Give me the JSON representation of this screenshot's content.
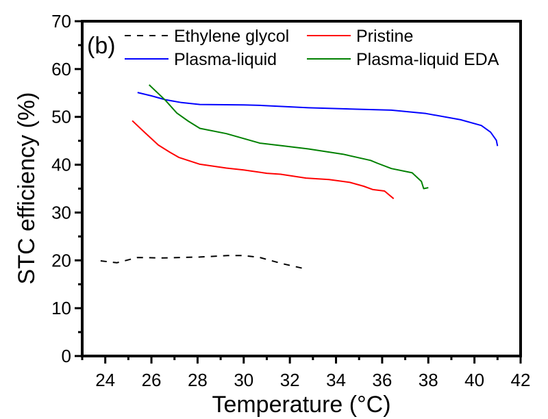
{
  "chart_data": {
    "type": "line",
    "title": "",
    "panel_label": "(b)",
    "xlabel": "Temperature (°C)",
    "ylabel": "STC efficiency (%)",
    "xlim": [
      23,
      42
    ],
    "ylim": [
      0,
      70
    ],
    "x_ticks": [
      24,
      26,
      28,
      30,
      32,
      34,
      36,
      38,
      40,
      42
    ],
    "x_minor_ticks": [
      23,
      25,
      27,
      29,
      31,
      33,
      35,
      37,
      39,
      41
    ],
    "y_ticks": [
      0,
      10,
      20,
      30,
      40,
      50,
      60,
      70
    ],
    "y_minor_ticks": [
      5,
      15,
      25,
      35,
      45,
      55,
      65
    ],
    "grid": false,
    "legend_position": "top",
    "series": [
      {
        "name": "Ethylene glycol",
        "color": "#000000",
        "style": "dashed",
        "x": [
          23.8,
          24.5,
          25.4,
          26.5,
          28.1,
          29.3,
          30.0,
          30.7,
          31.6,
          32.6
        ],
        "y": [
          19.9,
          19.5,
          20.6,
          20.5,
          20.7,
          21.0,
          21.0,
          20.6,
          19.4,
          18.3
        ]
      },
      {
        "name": "Pristine",
        "color": "#ff0000",
        "style": "solid",
        "x": [
          25.17,
          25.7,
          26.3,
          26.8,
          27.2,
          28.1,
          29.25,
          30.0,
          31.0,
          31.6,
          32.7,
          33.7,
          34.6,
          35.2,
          35.6,
          36.1,
          36.5
        ],
        "y": [
          49.2,
          46.8,
          44.1,
          42.6,
          41.5,
          40.1,
          39.3,
          38.9,
          38.2,
          38.0,
          37.2,
          36.9,
          36.3,
          35.5,
          34.8,
          34.5,
          32.9
        ]
      },
      {
        "name": "Plasma-liquid",
        "color": "#0000ff",
        "style": "solid",
        "x": [
          25.4,
          26.0,
          26.6,
          27.3,
          28.1,
          30.0,
          30.7,
          32.8,
          34.9,
          36.4,
          37.9,
          39.4,
          40.3,
          40.7,
          40.95,
          41.0
        ],
        "y": [
          55.1,
          54.4,
          53.6,
          53.0,
          52.6,
          52.5,
          52.4,
          51.9,
          51.6,
          51.4,
          50.7,
          49.4,
          48.2,
          46.8,
          45.1,
          43.9
        ]
      },
      {
        "name": "Plasma-liquid EDA",
        "color": "#008000",
        "style": "solid",
        "x": [
          25.9,
          26.6,
          27.1,
          27.6,
          28.1,
          29.25,
          30.7,
          31.6,
          32.8,
          34.3,
          35.5,
          35.8,
          36.4,
          37.3,
          37.7,
          37.8,
          38.0
        ],
        "y": [
          56.7,
          53.5,
          50.8,
          49.1,
          47.6,
          46.5,
          44.5,
          44.0,
          43.3,
          42.2,
          40.9,
          40.3,
          39.2,
          38.3,
          36.5,
          35.0,
          35.2
        ]
      }
    ]
  }
}
